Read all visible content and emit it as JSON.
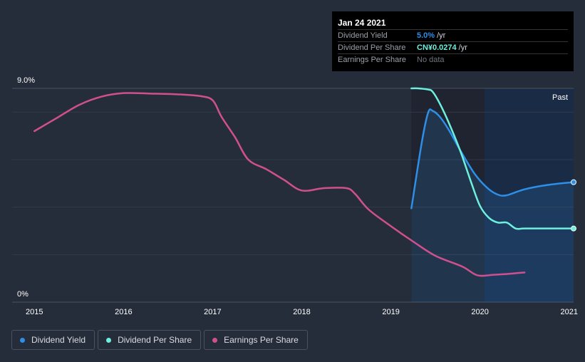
{
  "chart_data": {
    "type": "line",
    "title": "",
    "xlabel": "",
    "ylabel": "",
    "xlim": [
      2014.75,
      2021.05
    ],
    "ylim": [
      0,
      9.0
    ],
    "x_ticks": [
      "2015",
      "2016",
      "2017",
      "2018",
      "2019",
      "2020",
      "2021"
    ],
    "y_tick_labels": [
      "9.0%",
      "0%"
    ],
    "past_label": "Past",
    "forecast_shading_start": 2019.23,
    "past_shading_start": 2020.05,
    "series": [
      {
        "name": "Dividend Yield",
        "color": "#2d8fe8",
        "x": [
          2019.23,
          2019.35,
          2019.42,
          2019.47,
          2019.55,
          2019.65,
          2019.8,
          2019.95,
          2020.1,
          2020.22,
          2020.3,
          2020.38,
          2020.5,
          2020.7,
          2020.9,
          2021.05
        ],
        "y": [
          3.95,
          6.8,
          8.0,
          8.05,
          7.8,
          7.25,
          6.25,
          5.35,
          4.75,
          4.5,
          4.5,
          4.6,
          4.75,
          4.9,
          5.0,
          5.05
        ]
      },
      {
        "name": "Dividend Per Share",
        "color": "#6ef0de",
        "x": [
          2019.23,
          2019.3,
          2019.42,
          2019.47,
          2019.55,
          2019.65,
          2019.78,
          2019.9,
          2020.0,
          2020.1,
          2020.2,
          2020.3,
          2020.4,
          2020.5,
          2020.8,
          2021.05
        ],
        "y": [
          9.0,
          9.0,
          8.95,
          8.85,
          8.35,
          7.55,
          6.35,
          5.05,
          4.05,
          3.55,
          3.35,
          3.35,
          3.1,
          3.1,
          3.1,
          3.1
        ]
      },
      {
        "name": "Earnings Per Share",
        "color": "#d0508f",
        "x": [
          2015.0,
          2015.25,
          2015.5,
          2015.75,
          2016.0,
          2016.3,
          2016.6,
          2016.85,
          2017.0,
          2017.1,
          2017.25,
          2017.4,
          2017.6,
          2017.8,
          2018.0,
          2018.25,
          2018.5,
          2018.6,
          2018.75,
          2019.0,
          2019.25,
          2019.5,
          2019.8,
          2019.97,
          2020.15,
          2020.35,
          2020.5
        ],
        "y": [
          7.2,
          7.75,
          8.3,
          8.65,
          8.8,
          8.78,
          8.75,
          8.68,
          8.5,
          7.8,
          6.95,
          6.0,
          5.6,
          5.15,
          4.7,
          4.8,
          4.8,
          4.55,
          3.9,
          3.2,
          2.55,
          1.95,
          1.5,
          1.13,
          1.15,
          1.2,
          1.25
        ]
      }
    ],
    "end_markers": [
      "Dividend Yield",
      "Dividend Per Share"
    ]
  },
  "tooltip": {
    "date": "Jan 24 2021",
    "rows": [
      {
        "label": "Dividend Yield",
        "value": "5.0%",
        "unit": "/yr"
      },
      {
        "label": "Dividend Per Share",
        "value": "CN¥0.0274",
        "unit": "/yr"
      },
      {
        "label": "Earnings Per Share",
        "value": "No data"
      }
    ]
  },
  "legend": [
    {
      "label": "Dividend Yield",
      "color": "#2d8fe8"
    },
    {
      "label": "Dividend Per Share",
      "color": "#6ef0de"
    },
    {
      "label": "Earnings Per Share",
      "color": "#d0508f"
    }
  ]
}
